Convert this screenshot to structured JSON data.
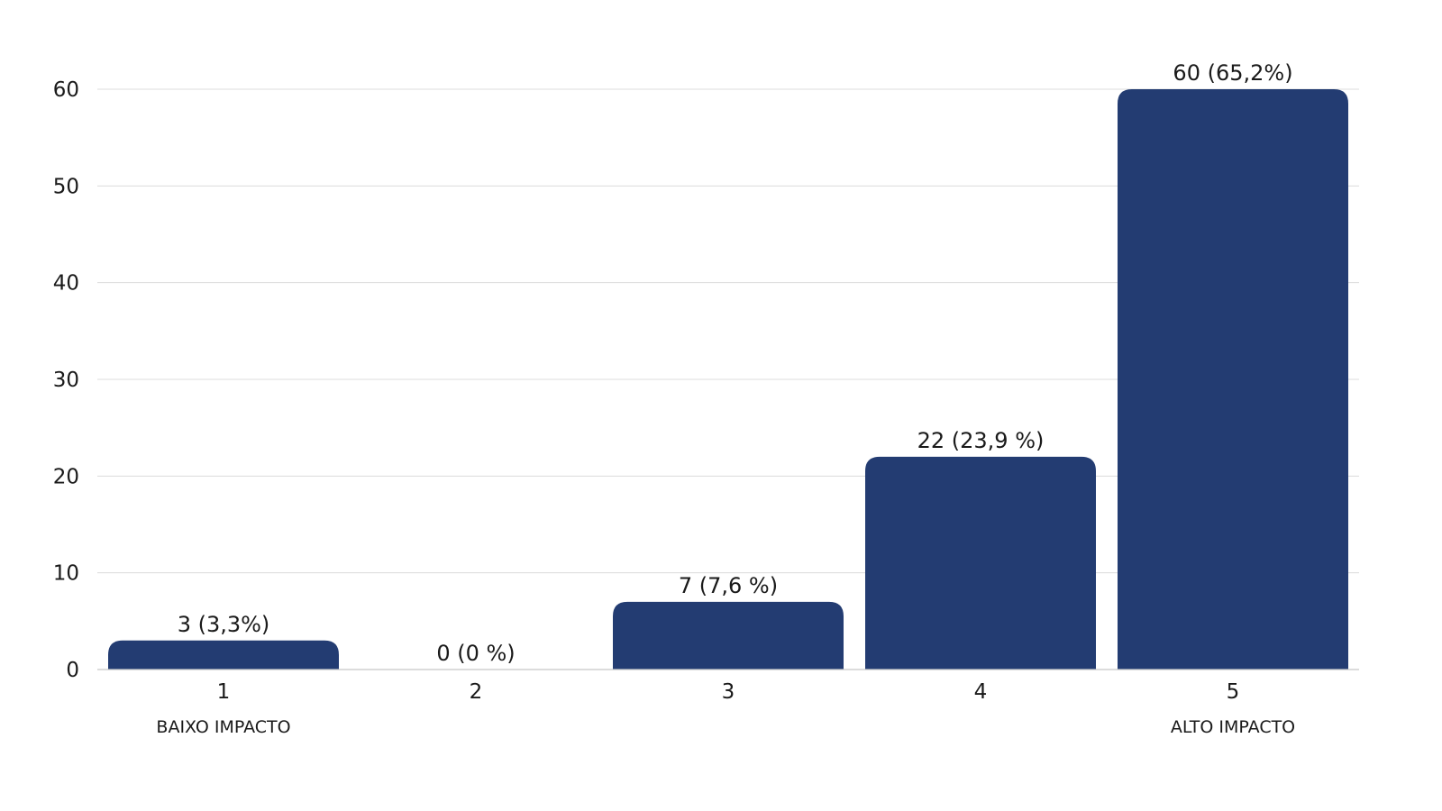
{
  "chart_data": {
    "type": "bar",
    "categories": [
      "1",
      "2",
      "3",
      "4",
      "5"
    ],
    "values": [
      3,
      0,
      7,
      22,
      60
    ],
    "data_labels": [
      "3 (3,3%)",
      "0 (0 %)",
      "7 (7,6 %)",
      "22 (23,9 %)",
      "60 (65,2%)"
    ],
    "category_sublabels": [
      "BAIXO IMPACTO",
      "",
      "",
      "",
      "ALTO IMPACTO"
    ],
    "ylim": [
      0,
      60
    ],
    "yticks": [
      0,
      10,
      20,
      30,
      40,
      50,
      60
    ],
    "grid": true,
    "title": "",
    "xlabel": "",
    "ylabel": ""
  },
  "colors": {
    "bar": "#233C72",
    "text": "#1a1a1a",
    "grid": "#dcdcdc"
  }
}
